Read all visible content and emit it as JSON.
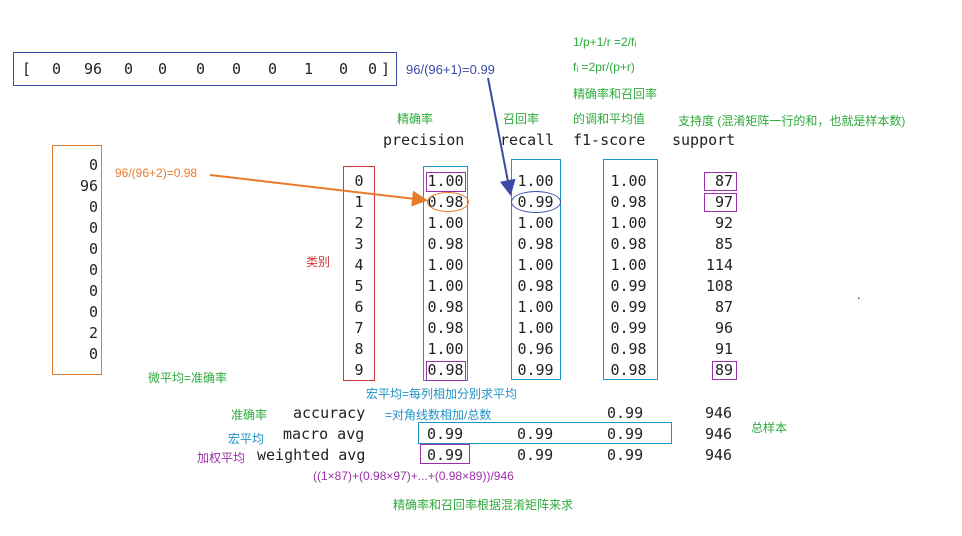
{
  "top_vector": {
    "bracket_open": "[",
    "values": [
      "0",
      "96",
      "0",
      "0",
      "0",
      "0",
      "0",
      "1",
      "0",
      "0"
    ],
    "bracket_close": "]"
  },
  "annotations": {
    "recall_calc": "96/(96+1)=0.99",
    "precision_calc": "96/(96+2)=0.98",
    "f1_formula_1": "1/p+1/r =2/fᵢ",
    "f1_formula_2": "fᵢ =2pr/(p+r)",
    "f1_desc_1": "精确率和召回率",
    "f1_desc_2": "的调和平均值",
    "precision_cn": "精确率",
    "recall_cn": "召回率",
    "support_cn": "支持度 (混淆矩阵一行的和，也就是样本数)",
    "class_cn": "类别",
    "micro_avg_cn": "微平均=准确率",
    "macro_avg_cn": "宏平均=每列相加分别求平均",
    "accuracy_cn": "准确率",
    "accuracy_desc": "=对角线数相加/总数",
    "macro_cn": "宏平均",
    "weighted_cn": "加权平均",
    "total_samples_cn": "总样本",
    "weighted_formula": "((1×87)+(0.98×97)+...+(0.98×89))/946",
    "bottom_note": "精确率和召回率根据混淆矩阵来求",
    "stray_dot": "."
  },
  "left_column": [
    "0",
    "96",
    "0",
    "0",
    "0",
    "0",
    "0",
    "0",
    "2",
    "0"
  ],
  "report": {
    "headers": {
      "precision": "precision",
      "recall": "recall",
      "f1": "f1-score",
      "support": "support"
    },
    "classes": [
      "0",
      "1",
      "2",
      "3",
      "4",
      "5",
      "6",
      "7",
      "8",
      "9"
    ],
    "precision": [
      "1.00",
      "0.98",
      "1.00",
      "0.98",
      "1.00",
      "1.00",
      "0.98",
      "0.98",
      "1.00",
      "0.98"
    ],
    "recall": [
      "1.00",
      "0.99",
      "1.00",
      "0.98",
      "1.00",
      "0.98",
      "1.00",
      "1.00",
      "0.96",
      "0.99"
    ],
    "f1": [
      "1.00",
      "0.98",
      "1.00",
      "0.98",
      "1.00",
      "0.99",
      "0.99",
      "0.99",
      "0.98",
      "0.98"
    ],
    "support": [
      "87",
      "97",
      "92",
      "85",
      "114",
      "108",
      "87",
      "96",
      "91",
      "89"
    ],
    "accuracy": {
      "label": "accuracy",
      "f1": "0.99",
      "support": "946"
    },
    "macro_avg": {
      "label": "macro avg",
      "precision": "0.99",
      "recall": "0.99",
      "f1": "0.99",
      "support": "946"
    },
    "weighted_avg": {
      "label": "weighted avg",
      "precision": "0.99",
      "recall": "0.99",
      "f1": "0.99",
      "support": "946"
    }
  },
  "colors": {
    "green": "#2eaa3c",
    "blue": "#3a4aa5",
    "orange": "#e87b2b",
    "red": "#d2373a",
    "cyan": "#1f93c6",
    "purple": "#9b2fa7"
  }
}
